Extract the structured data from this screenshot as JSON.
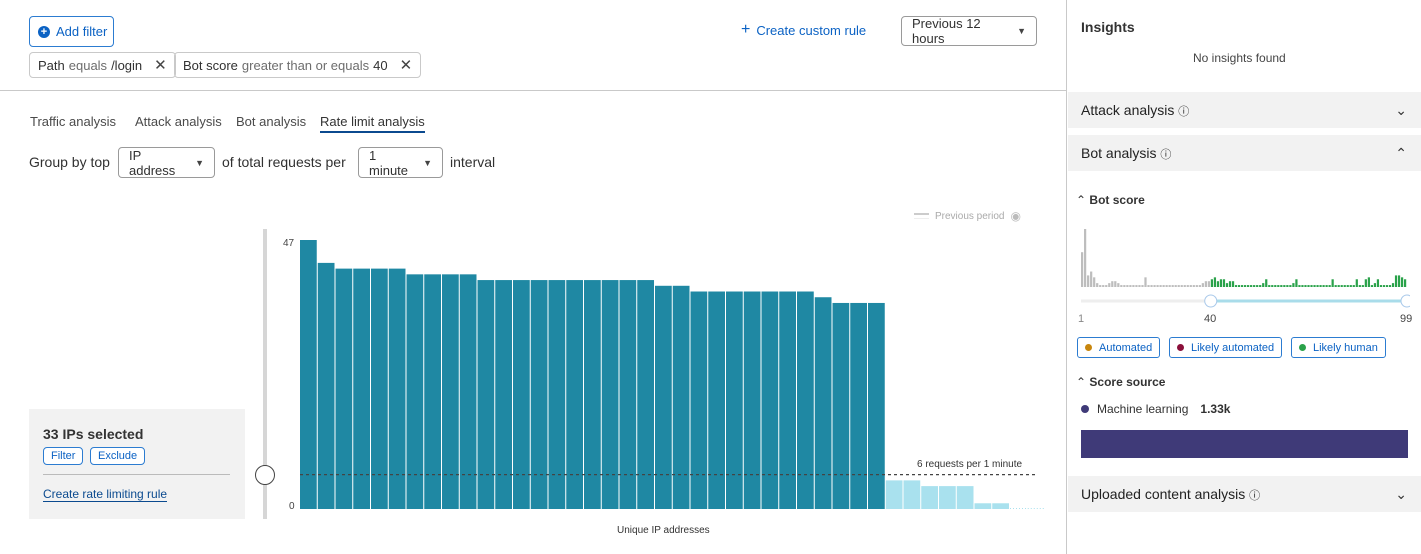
{
  "toolbar": {
    "add_filter": "Add filter",
    "create_rule": "Create custom rule",
    "time_range": "Previous 12 hours"
  },
  "filters": [
    {
      "field": "Path",
      "op": "equals",
      "value": "/login"
    },
    {
      "field": "Bot score",
      "op": "greater than or equals",
      "value": "40"
    }
  ],
  "tabs": [
    {
      "label": "Traffic analysis"
    },
    {
      "label": "Attack analysis"
    },
    {
      "label": "Bot analysis"
    },
    {
      "label": "Rate limit analysis",
      "active": true
    }
  ],
  "groupby": {
    "prefix": "Group by top",
    "field": "IP address",
    "middle": "of total requests per",
    "interval": "1 minute",
    "suffix": "interval"
  },
  "selection": {
    "title": "33 IPs selected",
    "filter": "Filter",
    "exclude": "Exclude",
    "create": "Create rate limiting rule"
  },
  "chart_data": {
    "type": "bar",
    "xlabel": "Unique IP addresses",
    "ylabel": "",
    "ylim": [
      0,
      47
    ],
    "yticks": [
      "0",
      "47"
    ],
    "values": [
      47,
      43,
      42,
      42,
      42,
      42,
      41,
      41,
      41,
      41,
      40,
      40,
      40,
      40,
      40,
      40,
      40,
      40,
      40,
      40,
      39,
      39,
      38,
      38,
      38,
      38,
      38,
      38,
      38,
      37,
      36,
      36,
      36,
      5,
      5,
      4,
      4,
      4,
      1,
      1,
      0,
      0
    ],
    "selected_count": 33,
    "threshold": {
      "value": 6,
      "label": "6 requests per 1 minute"
    },
    "legend": {
      "previous_period": "Previous period"
    },
    "colors": {
      "selected": "#1f88a3",
      "unselected": "#a9e1ee"
    }
  },
  "insights": {
    "title": "Insights",
    "empty": "No insights found",
    "attack": "Attack analysis",
    "bot": "Bot analysis",
    "uploaded": "Uploaded content analysis",
    "bot_score": {
      "title": "Bot score",
      "min": "1",
      "selected": "40",
      "max": "99",
      "histogram": [
        18,
        30,
        6,
        8,
        5,
        2,
        1,
        1,
        1,
        2,
        3,
        3,
        2,
        1,
        1,
        1,
        1,
        1,
        1,
        1,
        1,
        5,
        1,
        1,
        1,
        1,
        1,
        1,
        1,
        1,
        1,
        1,
        1,
        1,
        1,
        1,
        1,
        1,
        1,
        1,
        2,
        3,
        3,
        4,
        5,
        3,
        4,
        4,
        2,
        3,
        3,
        1,
        1,
        1,
        1,
        1,
        1,
        1,
        1,
        1,
        2,
        4,
        1,
        1,
        1,
        1,
        1,
        1,
        1,
        1,
        2,
        4,
        1,
        1,
        1,
        1,
        1,
        1,
        1,
        1,
        1,
        1,
        1,
        4,
        1,
        1,
        1,
        1,
        1,
        1,
        1,
        4,
        1,
        1,
        4,
        5,
        1,
        2,
        4,
        1,
        1,
        1,
        1,
        2,
        6,
        6,
        5,
        4
      ],
      "legend": [
        {
          "label": "Automated",
          "color": "#c8860d"
        },
        {
          "label": "Likely automated",
          "color": "#8b0f3a"
        },
        {
          "label": "Likely human",
          "color": "#2aa24a"
        }
      ]
    },
    "score_source": {
      "title": "Score source",
      "label": "Machine learning",
      "value": "1.33k",
      "color": "#3f3a78"
    }
  }
}
